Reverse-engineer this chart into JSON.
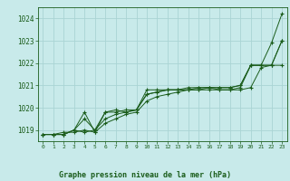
{
  "title": "Graphe pression niveau de la mer (hPa)",
  "bg_color": "#c8eaea",
  "grid_color": "#aad4d4",
  "line_color": "#1a5c1a",
  "ylim": [
    1018.5,
    1024.5
  ],
  "xlim": [
    -0.5,
    23.5
  ],
  "yticks": [
    1019,
    1020,
    1021,
    1022,
    1023,
    1024
  ],
  "xticks": [
    0,
    1,
    2,
    3,
    4,
    5,
    6,
    7,
    8,
    9,
    10,
    11,
    12,
    13,
    14,
    15,
    16,
    17,
    18,
    19,
    20,
    21,
    22,
    23
  ],
  "series": [
    [
      1018.8,
      1018.8,
      1018.8,
      1019.0,
      1019.8,
      1018.9,
      1019.8,
      1019.9,
      1019.8,
      1019.9,
      1020.8,
      1020.8,
      1020.8,
      1020.8,
      1020.8,
      1020.8,
      1020.9,
      1020.8,
      1020.8,
      1020.9,
      1021.9,
      1021.9,
      1022.9,
      1024.2
    ],
    [
      1018.8,
      1018.8,
      1018.8,
      1019.0,
      1019.5,
      1019.0,
      1019.5,
      1019.7,
      1019.8,
      1019.9,
      1020.6,
      1020.7,
      1020.8,
      1020.8,
      1020.9,
      1020.9,
      1020.9,
      1020.9,
      1020.9,
      1021.0,
      1021.9,
      1021.9,
      1021.9,
      1023.0
    ],
    [
      1018.8,
      1018.8,
      1018.8,
      1019.0,
      1018.9,
      1019.0,
      1019.8,
      1019.8,
      1019.9,
      1019.9,
      1020.6,
      1020.7,
      1020.8,
      1020.8,
      1020.8,
      1020.9,
      1020.9,
      1020.9,
      1020.9,
      1021.0,
      1021.9,
      1021.9,
      1021.9,
      1023.0
    ],
    [
      1018.8,
      1018.8,
      1018.9,
      1018.9,
      1019.0,
      1018.9,
      1019.3,
      1019.5,
      1019.7,
      1019.8,
      1020.3,
      1020.5,
      1020.6,
      1020.7,
      1020.8,
      1020.8,
      1020.8,
      1020.8,
      1020.8,
      1020.8,
      1020.9,
      1021.8,
      1021.9,
      1021.9
    ]
  ]
}
